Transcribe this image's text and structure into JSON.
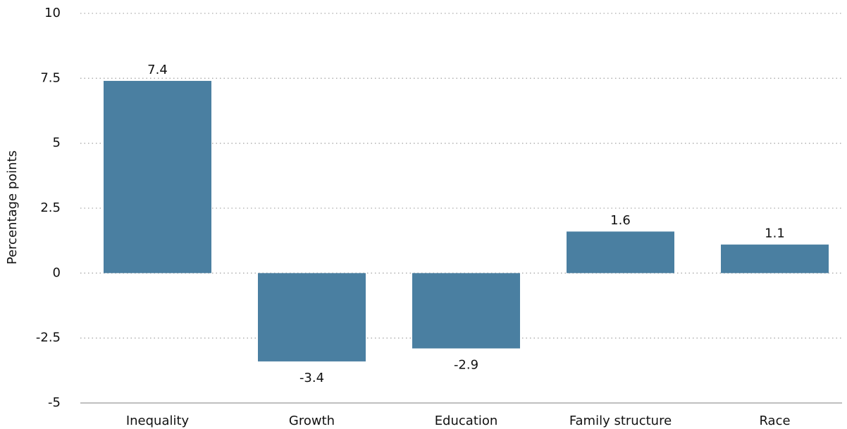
{
  "chart_data": {
    "type": "bar",
    "y_label": "Percentage points",
    "categories": [
      "Inequality",
      "Growth",
      "Education",
      "Family structure",
      "Race"
    ],
    "values": [
      7.4,
      -3.4,
      -2.9,
      1.6,
      1.1
    ],
    "color": "#4a7fa1",
    "ylim": [
      -5,
      10
    ],
    "yticks": [
      -5,
      -2.5,
      0,
      2.5,
      5,
      7.5,
      10
    ],
    "grid": true
  }
}
